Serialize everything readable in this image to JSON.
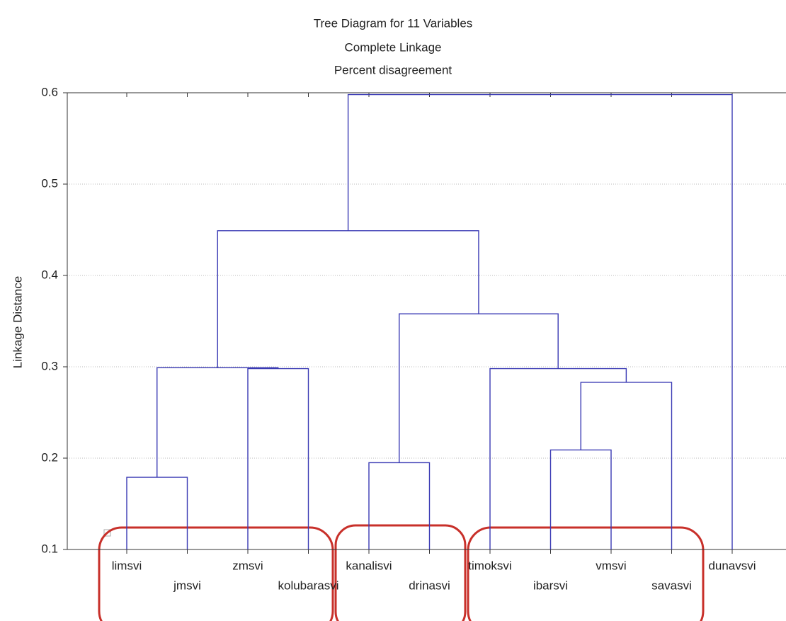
{
  "chart_data": {
    "type": "dendrogram",
    "title": [
      "Tree Diagram for 11  Variables",
      "Complete Linkage",
      "Percent disagreement"
    ],
    "ylabel": "Linkage Distance",
    "leaves": [
      "limsvi",
      "jmsvi",
      "zmsvi",
      "kolubarasvi",
      "kanalisvi",
      "drinasvi",
      "timoksvi",
      "ibarsvi",
      "vmsvi",
      "savasvi",
      "dunavsvi"
    ],
    "merges": [
      {
        "left": 0,
        "right": 1,
        "height": 0.179
      },
      {
        "left": 2,
        "right": 3,
        "height": 0.298
      },
      {
        "left": 11,
        "right": 12,
        "height": 0.299
      },
      {
        "left": 4,
        "right": 5,
        "height": 0.195
      },
      {
        "left": 7,
        "right": 8,
        "height": 0.209
      },
      {
        "left": 15,
        "right": 9,
        "height": 0.283
      },
      {
        "left": 6,
        "right": 16,
        "height": 0.298
      },
      {
        "left": 14,
        "right": 17,
        "height": 0.358
      },
      {
        "left": 13,
        "right": 18,
        "height": 0.449
      },
      {
        "left": 19,
        "right": 10,
        "height": 0.598
      }
    ],
    "color": "#3a3ab4",
    "ylim": [
      0.1,
      0.6
    ],
    "yticks": [
      0.1,
      0.2,
      0.3,
      0.4,
      0.5,
      0.6
    ],
    "grid": true
  }
}
